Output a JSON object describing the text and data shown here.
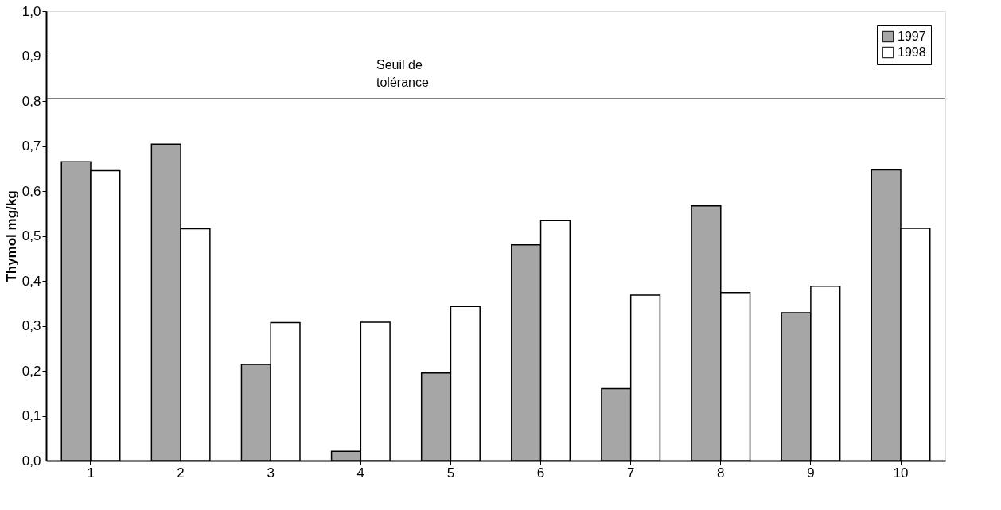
{
  "chart_data": {
    "type": "bar",
    "ylabel": "Thymol mg/kg",
    "categories": [
      "1",
      "2",
      "3",
      "4",
      "5",
      "6",
      "7",
      "8",
      "9",
      "10"
    ],
    "series": [
      {
        "name": "1997",
        "color": "#a6a6a6",
        "values": [
          0.665,
          0.704,
          0.214,
          0.021,
          0.195,
          0.48,
          0.16,
          0.567,
          0.329,
          0.647
        ]
      },
      {
        "name": "1998",
        "color": "#ffffff",
        "values": [
          0.645,
          0.516,
          0.307,
          0.308,
          0.343,
          0.534,
          0.368,
          0.374,
          0.388,
          0.517
        ]
      }
    ],
    "ylim": [
      0,
      1
    ],
    "yticks": [
      {
        "value": 0,
        "label": "0,0"
      },
      {
        "value": 0.1,
        "label": "0,1"
      },
      {
        "value": 0.2,
        "label": "0,2"
      },
      {
        "value": 0.3,
        "label": "0,3"
      },
      {
        "value": 0.4,
        "label": "0,4"
      },
      {
        "value": 0.5,
        "label": "0,5"
      },
      {
        "value": 0.6,
        "label": "0,6"
      },
      {
        "value": 0.7,
        "label": "0,7"
      },
      {
        "value": 0.8,
        "label": "0,8"
      },
      {
        "value": 0.9,
        "label": "0,9"
      },
      {
        "value": 1,
        "label": "1,0"
      }
    ],
    "ref_lines": [
      {
        "axis": "y",
        "value": 0.805,
        "label": "Seuil de\ntolérance",
        "color": "#000000"
      }
    ],
    "grid": false,
    "legend": "top right"
  }
}
